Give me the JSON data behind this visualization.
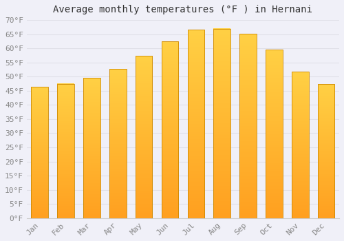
{
  "title": "Average monthly temperatures (°F ) in Hernani",
  "months": [
    "Jan",
    "Feb",
    "Mar",
    "Apr",
    "May",
    "Jun",
    "Jul",
    "Aug",
    "Sep",
    "Oct",
    "Nov",
    "Dec"
  ],
  "values": [
    46.4,
    47.5,
    49.5,
    52.7,
    57.4,
    62.4,
    66.6,
    66.9,
    65.1,
    59.5,
    51.8,
    47.3
  ],
  "bar_color_top": "#FFD044",
  "bar_color_bottom": "#FFA020",
  "bar_edge_color": "#CC8800",
  "ylim": [
    0,
    70
  ],
  "ytick_step": 5,
  "background_color": "#f0f0f8",
  "plot_bg_color": "#f0f0f8",
  "grid_color": "#e0e0e8",
  "title_fontsize": 10,
  "tick_fontsize": 8,
  "font_family": "monospace",
  "tick_color": "#888888"
}
